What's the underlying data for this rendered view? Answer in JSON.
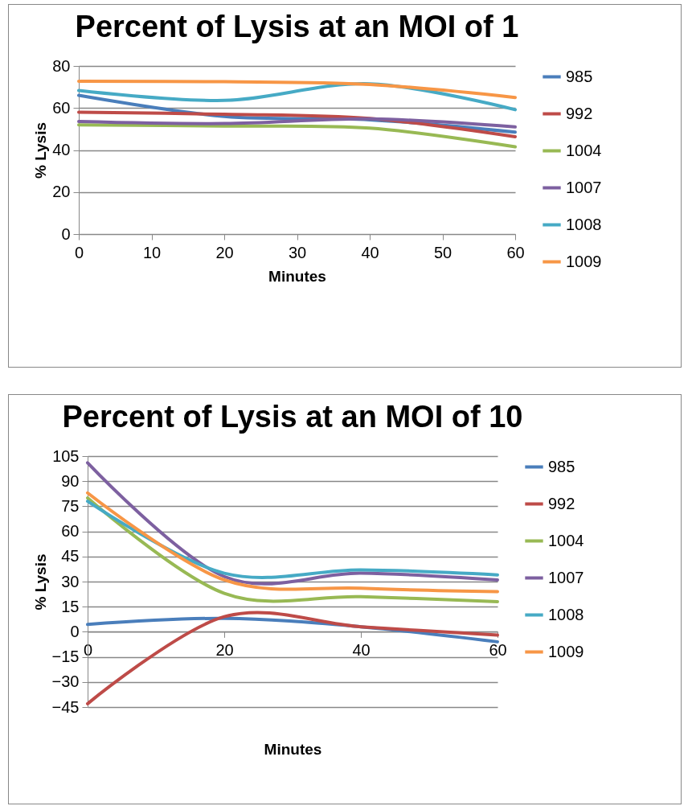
{
  "chart_data": [
    {
      "type": "line",
      "title": "Percent of Lysis at an MOI of 1",
      "xlabel": "Minutes",
      "ylabel": "% Lysis",
      "x": [
        0,
        20,
        40,
        60
      ],
      "xlim": [
        0,
        60
      ],
      "xticks": [
        0,
        10,
        20,
        30,
        40,
        50,
        60
      ],
      "ylim": [
        0,
        80
      ],
      "yticks": [
        0,
        20,
        40,
        60,
        80
      ],
      "grid": "y",
      "legend": "right",
      "series": [
        {
          "name": "985",
          "color": "#4a7ebb",
          "values": [
            66,
            56,
            54.4,
            48.5
          ]
        },
        {
          "name": "992",
          "color": "#be4b48",
          "values": [
            58,
            57,
            55,
            46.3
          ]
        },
        {
          "name": "1004",
          "color": "#98b954",
          "values": [
            52,
            51.4,
            50.4,
            41.5
          ]
        },
        {
          "name": "1007",
          "color": "#7d60a0",
          "values": [
            53.6,
            52.6,
            54.8,
            51
          ]
        },
        {
          "name": "1008",
          "color": "#46aac5",
          "values": [
            68.3,
            63.6,
            71.5,
            59.2
          ]
        },
        {
          "name": "1009",
          "color": "#f79646",
          "values": [
            72.7,
            72.5,
            71.2,
            65
          ]
        }
      ]
    },
    {
      "type": "line",
      "title": "Percent of Lysis at an MOI of 10",
      "xlabel": "Minutes",
      "ylabel": "% Lysis",
      "x": [
        0,
        20,
        40,
        60
      ],
      "xlim": [
        0,
        60
      ],
      "xticks": [
        0,
        20,
        40,
        60
      ],
      "ylim": [
        -45,
        105
      ],
      "yticks": [
        -45,
        -30,
        -15,
        0,
        15,
        30,
        45,
        60,
        75,
        90,
        105
      ],
      "grid": "y",
      "legend": "right",
      "series": [
        {
          "name": "985",
          "color": "#4a7ebb",
          "values": [
            4.4,
            8,
            3,
            -6
          ]
        },
        {
          "name": "992",
          "color": "#be4b48",
          "values": [
            -43,
            9,
            3,
            -2
          ]
        },
        {
          "name": "1004",
          "color": "#98b954",
          "values": [
            80,
            23,
            21,
            18
          ]
        },
        {
          "name": "1007",
          "color": "#7d60a0",
          "values": [
            101,
            33,
            35,
            31
          ]
        },
        {
          "name": "1008",
          "color": "#46aac5",
          "values": [
            78,
            35,
            37,
            34
          ]
        },
        {
          "name": "1009",
          "color": "#f79646",
          "values": [
            83,
            31,
            26,
            24
          ]
        }
      ]
    }
  ]
}
